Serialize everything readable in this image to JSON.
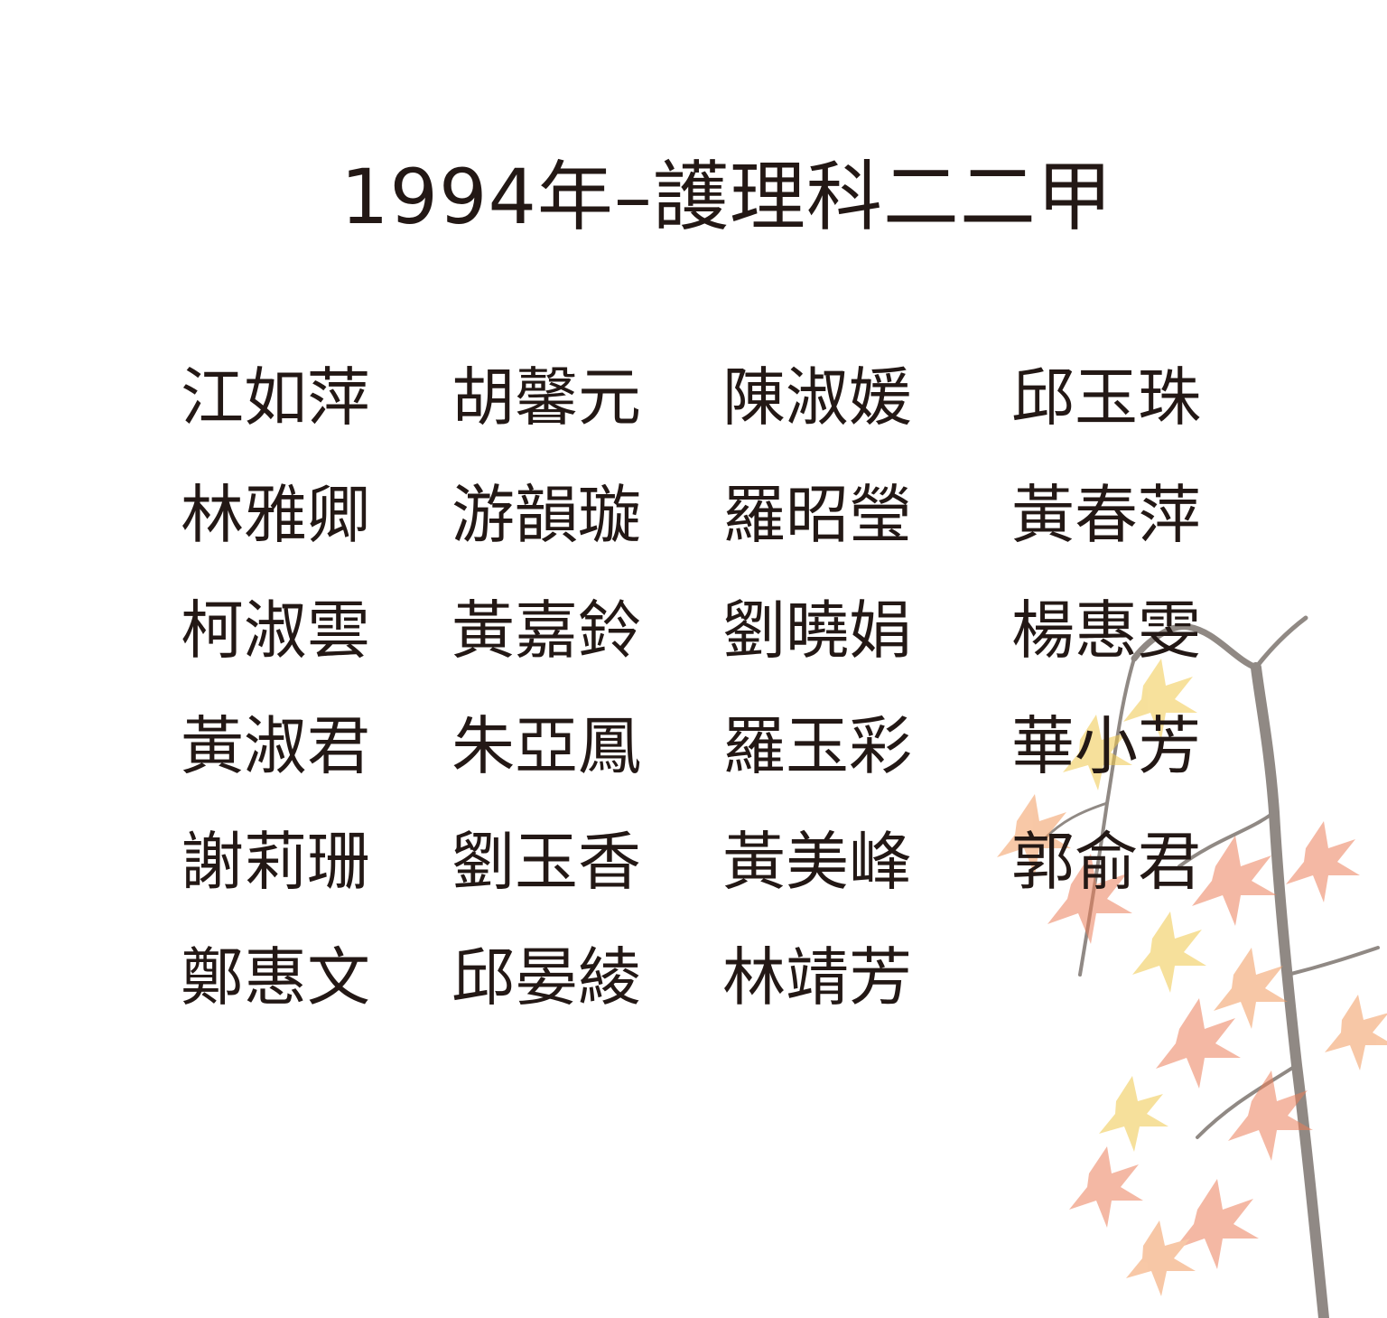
{
  "title": "1994年–護理科二二甲",
  "names": [
    [
      "江如萍",
      "胡馨元",
      "陳淑媛",
      "邱玉珠"
    ],
    [
      "林雅卿",
      "游韻璇",
      "羅昭瑩",
      "黃春萍"
    ],
    [
      "柯淑雲",
      "黃嘉鈴",
      "劉曉娟",
      "楊惠雯"
    ],
    [
      "黃淑君",
      "朱亞鳳",
      "羅玉彩",
      "華小芳"
    ],
    [
      "謝莉珊",
      "劉玉香",
      "黃美峰",
      "郭俞君"
    ],
    [
      "鄭惠文",
      "邱晏綾",
      "林靖芳",
      ""
    ]
  ],
  "decoration": {
    "leaf_colors": [
      "#f0c84a",
      "#f29a5e",
      "#ec7f5a",
      "#f6b26b"
    ],
    "branch_color": "#6b625c"
  }
}
